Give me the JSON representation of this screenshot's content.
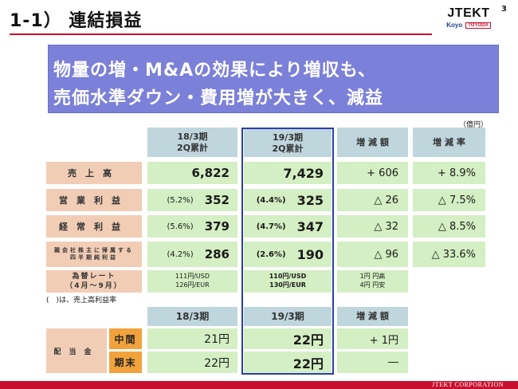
{
  "header": {
    "title": "1-1） 連結損益",
    "page_number": "3",
    "logo": {
      "main": "JTEKT",
      "sub1": "Koyo",
      "sub2": "TOYODA"
    }
  },
  "banner": {
    "line1": "物量の増・M&Aの効果により増収も、",
    "line2": "売価水準ダウン・費用増が大きく、減益"
  },
  "unit_note": "（億円）",
  "table": {
    "headers": {
      "prev": [
        "18/3期",
        "2Q累計"
      ],
      "curr": [
        "19/3期",
        "2Q累計"
      ],
      "change": "増 減 額",
      "rate": "増 減 率"
    },
    "rows": [
      {
        "label": "売上高",
        "prev_pct": "",
        "prev": "6,822",
        "curr_pct": "",
        "curr": "7,429",
        "change": "+ 606",
        "rate": "+ 8.9%"
      },
      {
        "label": "営業利益",
        "prev_pct": "(5.2%)",
        "prev": "352",
        "curr_pct": "(4.4%)",
        "curr": "325",
        "change": "△ 26",
        "rate": "△ 7.5%"
      },
      {
        "label": "経常利益",
        "prev_pct": "(5.6%)",
        "prev": "379",
        "curr_pct": "(4.7%)",
        "curr": "347",
        "change": "△ 32",
        "rate": "△ 8.5%"
      },
      {
        "label_lines": [
          "親会社株主に帰属する",
          "四半期純利益"
        ],
        "prev_pct": "(4.2%)",
        "prev": "286",
        "curr_pct": "(2.6%)",
        "curr": "190",
        "change": "△ 96",
        "rate": "△ 33.6%"
      }
    ],
    "fx": {
      "label_lines": [
        "為替レート",
        "（4月～9月）"
      ],
      "prev_lines": [
        "111円/USD",
        "126円/EUR"
      ],
      "curr_lines": [
        "110円/USD",
        "130円/EUR"
      ],
      "change_lines": [
        "1円 円高",
        "4円 円安"
      ]
    },
    "footnote": "(　)は、売上高利益率"
  },
  "dividend": {
    "headers": {
      "prev": "18/3期",
      "curr": "19/3期",
      "change": "増 減 額"
    },
    "label": "配当金",
    "rows": [
      {
        "sub": "中間",
        "prev": "21円",
        "curr": "22円",
        "change": "+ 1円"
      },
      {
        "sub": "期末",
        "prev": "22円",
        "curr": "22円",
        "change": "―"
      }
    ]
  },
  "footer": {
    "text": "JTEKT CORPORATION"
  },
  "colors": {
    "banner": "#7b80d8",
    "header_cell": "#bfd6dc",
    "label_cell": "#f2cdb6",
    "value_cell": "#d3efc3",
    "dividend_sub": "#f2a23c",
    "highlight_border": "#2b3fa8",
    "accent_red": "#c8102e"
  }
}
